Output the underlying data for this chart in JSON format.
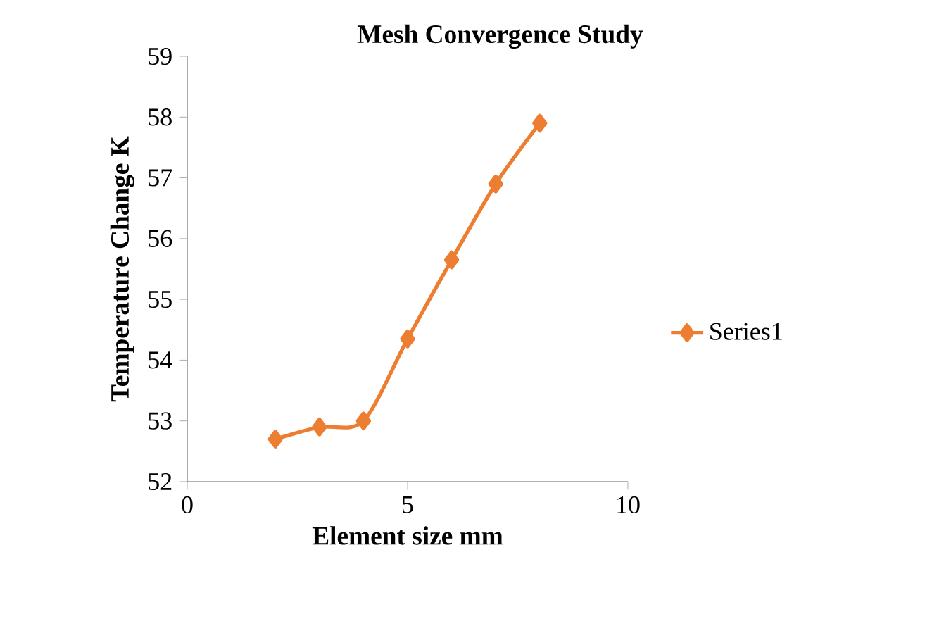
{
  "chart_data": {
    "type": "line",
    "title": "Mesh Convergence Study",
    "xlabel": "Element size mm",
    "ylabel": "Temperature Change K",
    "x": [
      2,
      3,
      4,
      5,
      6,
      7,
      8
    ],
    "series": [
      {
        "name": "Series1",
        "color": "#ed7d31",
        "values": [
          52.7,
          52.9,
          53.0,
          54.35,
          55.65,
          56.9,
          57.9
        ]
      }
    ],
    "xlim": [
      0,
      10
    ],
    "xticks": [
      0,
      5,
      10
    ],
    "ylim": [
      52,
      59
    ],
    "yticks": [
      52,
      53,
      54,
      55,
      56,
      57,
      58,
      59
    ],
    "marker": "diamond",
    "legend": "right",
    "grid": false
  }
}
